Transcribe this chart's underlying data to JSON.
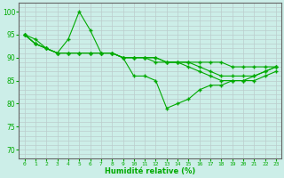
{
  "xlabel": "Humidité relative (%)",
  "bg_color": "#cceee8",
  "grid_color": "#bbcccc",
  "line_color": "#00aa00",
  "xlim": [
    -0.5,
    23.5
  ],
  "ylim": [
    68,
    102
  ],
  "yticks": [
    70,
    75,
    80,
    85,
    90,
    95,
    100
  ],
  "xticks": [
    0,
    1,
    2,
    3,
    4,
    5,
    6,
    7,
    8,
    9,
    10,
    11,
    12,
    13,
    14,
    15,
    16,
    17,
    18,
    19,
    20,
    21,
    22,
    23
  ],
  "lines": [
    [
      95,
      94,
      92,
      91,
      94,
      100,
      96,
      91,
      91,
      90,
      86,
      86,
      85,
      79,
      80,
      81,
      83,
      84,
      84,
      85,
      85,
      86,
      87,
      88
    ],
    [
      95,
      93,
      92,
      91,
      91,
      91,
      91,
      91,
      91,
      90,
      90,
      90,
      90,
      89,
      89,
      89,
      89,
      89,
      89,
      88,
      88,
      88,
      88,
      88
    ],
    [
      95,
      93,
      92,
      91,
      91,
      91,
      91,
      91,
      91,
      90,
      90,
      90,
      90,
      89,
      89,
      89,
      88,
      87,
      86,
      86,
      86,
      86,
      87,
      88
    ],
    [
      95,
      93,
      92,
      91,
      91,
      91,
      91,
      91,
      91,
      90,
      90,
      90,
      89,
      89,
      89,
      88,
      87,
      86,
      85,
      85,
      85,
      85,
      86,
      87
    ]
  ]
}
